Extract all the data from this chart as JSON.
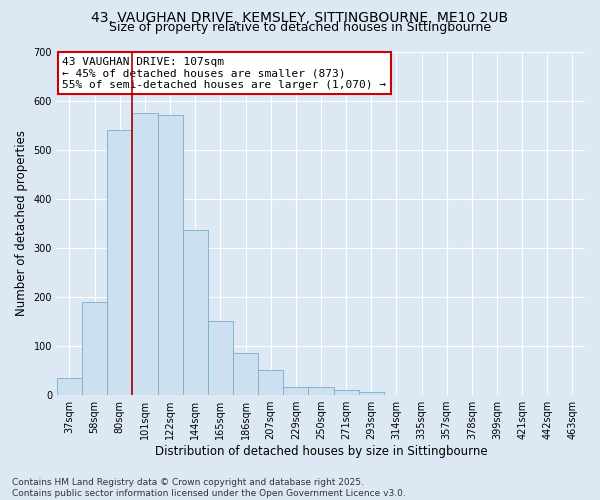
{
  "title1": "43, VAUGHAN DRIVE, KEMSLEY, SITTINGBOURNE, ME10 2UB",
  "title2": "Size of property relative to detached houses in Sittingbourne",
  "xlabel": "Distribution of detached houses by size in Sittingbourne",
  "ylabel": "Number of detached properties",
  "categories": [
    "37sqm",
    "58sqm",
    "80sqm",
    "101sqm",
    "122sqm",
    "144sqm",
    "165sqm",
    "186sqm",
    "207sqm",
    "229sqm",
    "250sqm",
    "271sqm",
    "293sqm",
    "314sqm",
    "335sqm",
    "357sqm",
    "378sqm",
    "399sqm",
    "421sqm",
    "442sqm",
    "463sqm"
  ],
  "values": [
    35,
    190,
    540,
    575,
    570,
    335,
    150,
    85,
    50,
    15,
    15,
    10,
    5,
    0,
    0,
    0,
    0,
    0,
    0,
    0,
    0
  ],
  "bar_color": "#cce0f0",
  "bar_edge_color": "#7aaacc",
  "vline_index": 3,
  "vline_color": "#aa0000",
  "annotation_line1": "43 VAUGHAN DRIVE: 107sqm",
  "annotation_line2": "← 45% of detached houses are smaller (873)",
  "annotation_line3": "55% of semi-detached houses are larger (1,070) →",
  "annotation_box_color": "#ffffff",
  "annotation_edge_color": "#cc0000",
  "ylim": [
    0,
    700
  ],
  "yticks": [
    0,
    100,
    200,
    300,
    400,
    500,
    600,
    700
  ],
  "background_color": "#dde8f5",
  "plot_bg_color": "#dde8f5",
  "footer_line1": "Contains HM Land Registry data © Crown copyright and database right 2025.",
  "footer_line2": "Contains public sector information licensed under the Open Government Licence v3.0.",
  "title_fontsize": 10,
  "subtitle_fontsize": 9,
  "axis_label_fontsize": 8.5,
  "tick_fontsize": 7,
  "annotation_fontsize": 8,
  "footer_fontsize": 6.5
}
